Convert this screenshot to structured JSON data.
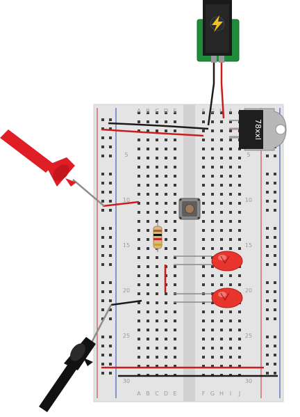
{
  "breadboard": {
    "column_letters_top": [
      "A",
      "B",
      "C",
      "D",
      "E",
      "F",
      "G",
      "H",
      "I",
      "J"
    ],
    "column_letters_bottom": [
      "A",
      "B",
      "C",
      "D",
      "E",
      "F",
      "G",
      "H",
      "I",
      "J"
    ],
    "row_numbers": [
      "5",
      "10",
      "15",
      "20",
      "25",
      "30"
    ],
    "row_numbers_right": [
      "5",
      "10",
      "15",
      "20",
      "25",
      "30"
    ],
    "rail_colors": {
      "positive": "#d42a2a",
      "negative": "#2a3fb0"
    },
    "body_color": "#e4e4e4"
  },
  "regulator": {
    "label": "78xxl"
  },
  "power_jack": {
    "icon": "lightning-bolt-icon",
    "board_color": "#1e8c3a"
  },
  "probes": [
    {
      "name": "red-probe",
      "color": "#e01e25"
    },
    {
      "name": "black-probe",
      "color": "#111111"
    }
  ],
  "wire_colors": {
    "red": "#c81e1e",
    "black": "#1a1a1a"
  },
  "components": {
    "resistor_bands": [
      "#a8621e",
      "#111111",
      "#c8281e",
      "#c9a227"
    ],
    "led_color": "#e8352e"
  }
}
